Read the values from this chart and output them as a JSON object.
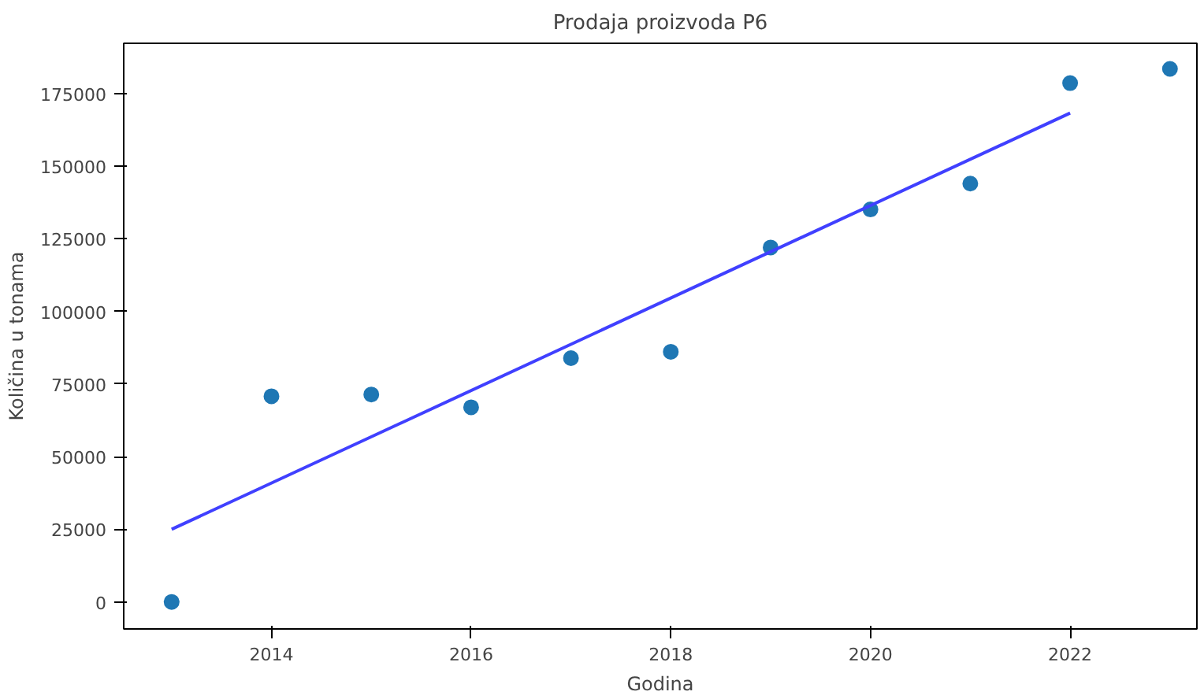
{
  "chart_data": {
    "type": "scatter",
    "title": "Prodaja proizvoda P6",
    "xlabel": "Godina",
    "ylabel": "Količina u tonama",
    "xlim": [
      2012.52,
      2023.27
    ],
    "ylim": [
      -9300,
      192300
    ],
    "xticks": [
      2014,
      2016,
      2018,
      2020,
      2022
    ],
    "yticks": [
      0,
      25000,
      50000,
      75000,
      100000,
      125000,
      150000,
      175000
    ],
    "grid": false,
    "series": [
      {
        "marker": "circle",
        "color": "#1f77b4",
        "x": [
          2013,
          2014,
          2015,
          2016,
          2017,
          2018,
          2019,
          2020,
          2021,
          2022,
          2023
        ],
        "values": [
          0,
          70800,
          71400,
          67000,
          83900,
          86100,
          122000,
          135100,
          144000,
          178600,
          183500
        ]
      },
      {
        "type": "line",
        "color": "#4040ff",
        "x": [
          2013,
          2022
        ],
        "values": [
          25000,
          168300
        ]
      }
    ]
  }
}
